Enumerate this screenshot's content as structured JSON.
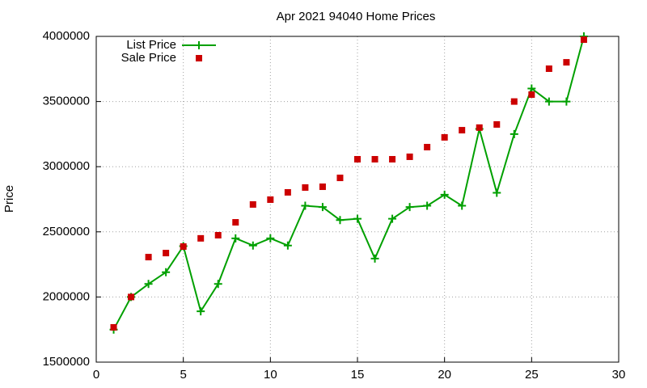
{
  "chart_data": {
    "type": "line",
    "title": "Apr 2021 94040 Home Prices",
    "y_label": "Price",
    "x": [
      1,
      2,
      3,
      4,
      5,
      6,
      7,
      8,
      9,
      10,
      11,
      12,
      13,
      14,
      15,
      16,
      17,
      18,
      19,
      20,
      21,
      22,
      23,
      24,
      25,
      26,
      27,
      28
    ],
    "series": [
      {
        "name": "List Price",
        "color": "#00a000",
        "style": "linespoints",
        "values": [
          1750000,
          2000000,
          2100000,
          2190000,
          2390000,
          1890000,
          2100000,
          2450000,
          2395000,
          2450000,
          2395000,
          2700000,
          2690000,
          2590000,
          2600000,
          2295000,
          2600000,
          2690000,
          2700000,
          2785000,
          2700000,
          3290000,
          2800000,
          3250000,
          3600000,
          3500000,
          3500000,
          4000000
        ]
      },
      {
        "name": "Sale Price",
        "color": "#cc0000",
        "style": "points",
        "values": [
          1767000,
          2000000,
          2306000,
          2337000,
          2387000,
          2450000,
          2474000,
          2573000,
          2710000,
          2747000,
          2803000,
          2840000,
          2846000,
          2914000,
          3057000,
          3057000,
          3057000,
          3076000,
          3150000,
          3225000,
          3280000,
          3300000,
          3324000,
          3500000,
          3553000,
          3752000,
          3801000,
          3975000
        ]
      }
    ],
    "xlim": [
      0,
      30
    ],
    "xticks": [
      0,
      5,
      10,
      15,
      20,
      25,
      30
    ],
    "ylim": [
      1500000,
      4000000
    ],
    "yticks": [
      1500000,
      2000000,
      2500000,
      3000000,
      3500000,
      4000000
    ],
    "grid": true,
    "legend": "top-left"
  }
}
